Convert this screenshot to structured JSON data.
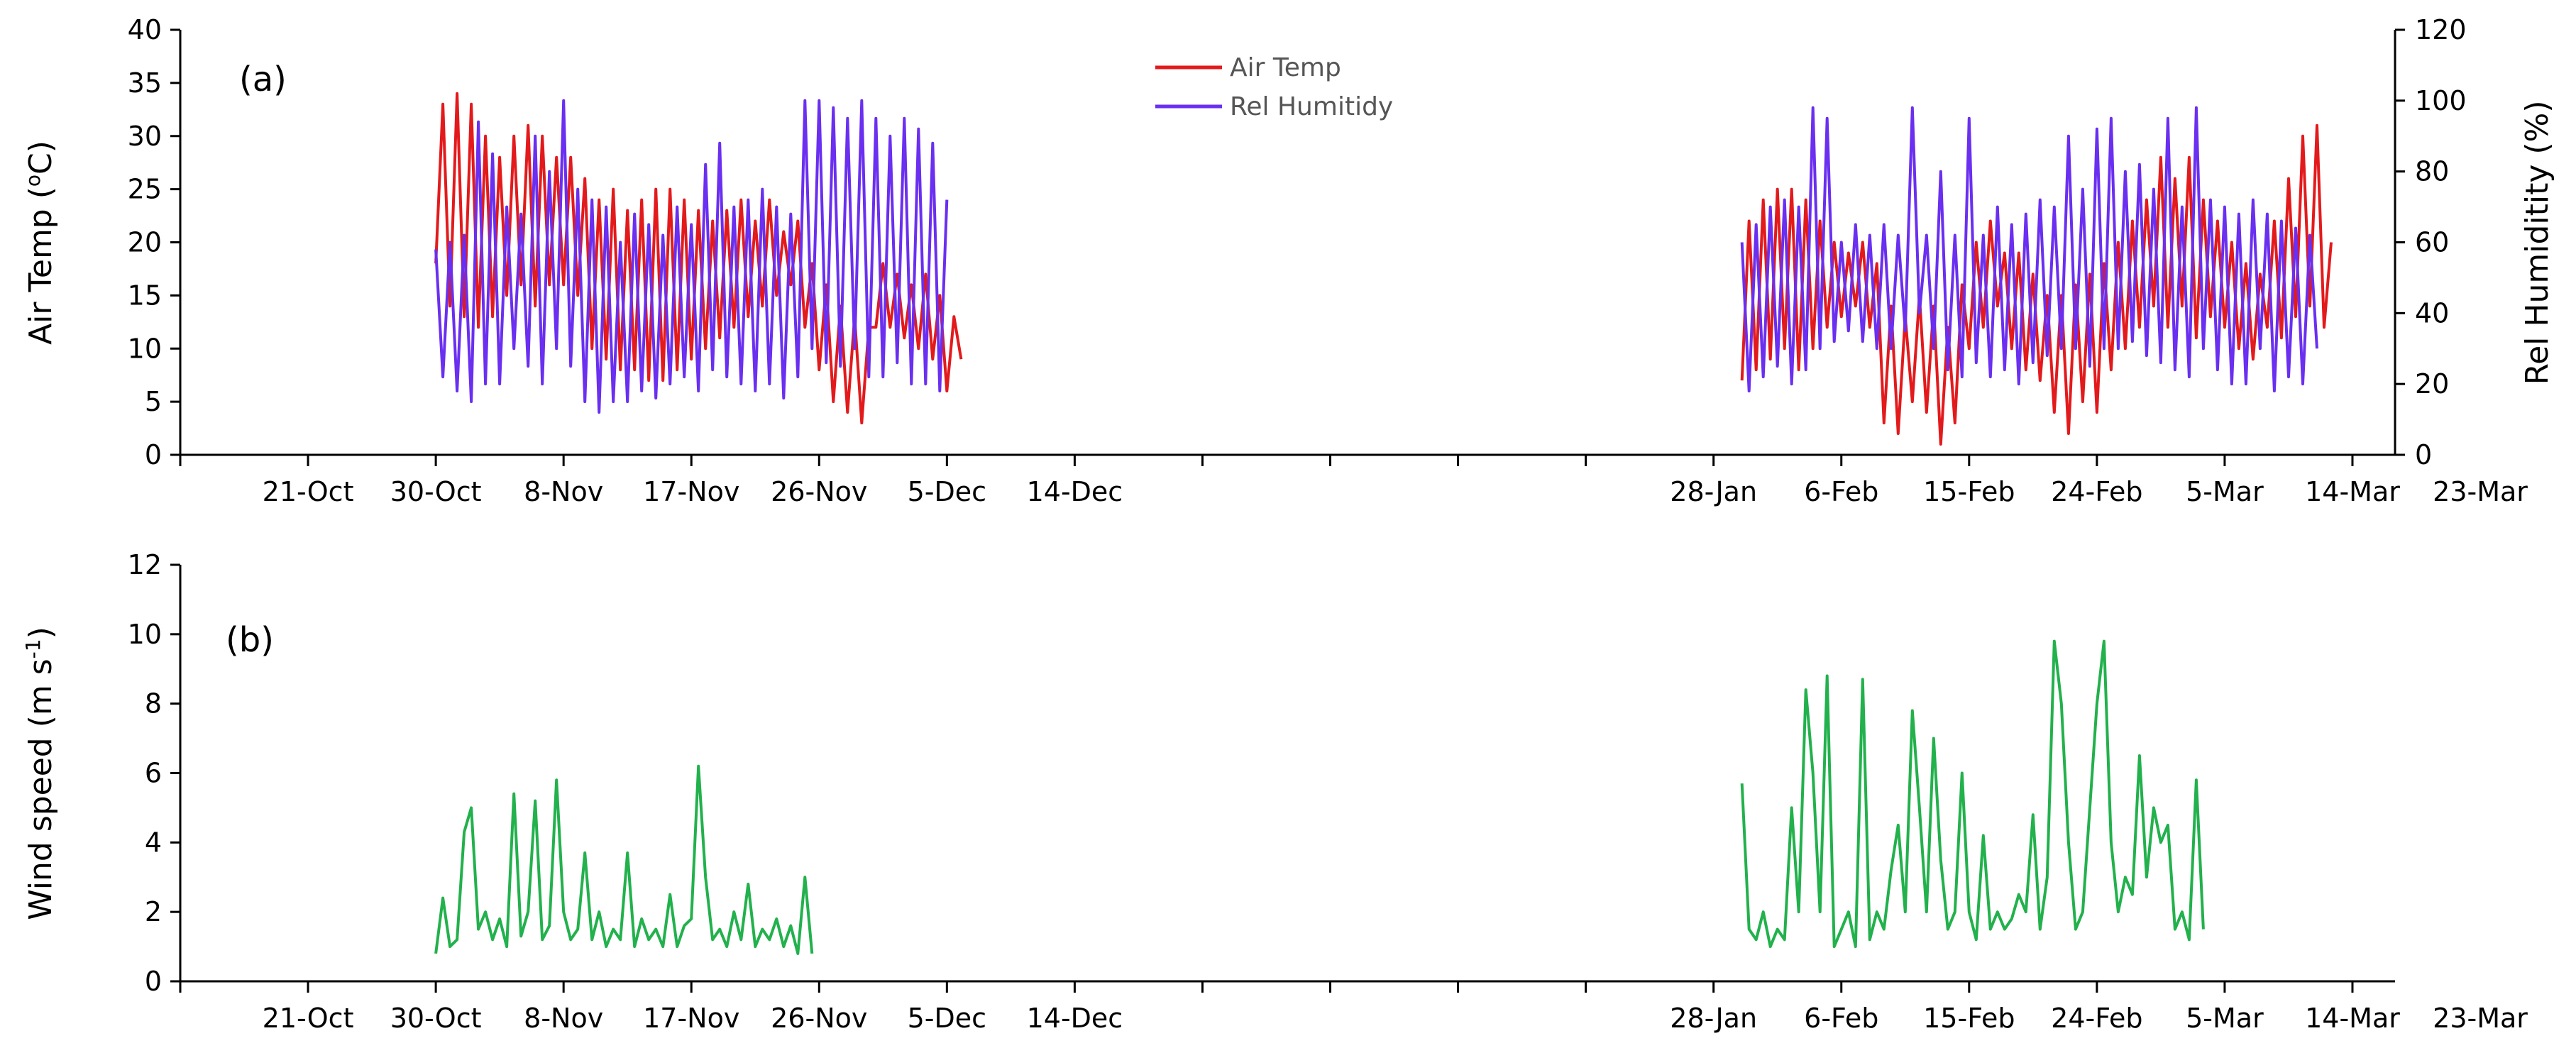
{
  "chart_data": [
    {
      "type": "line",
      "panel_label": "(a)",
      "ylabel_left": "Air Temp (",
      "ylabel_left_degree": "o",
      "ylabel_left_tail": "C)",
      "ylabel_right": "Rel Humiditity (%)",
      "ylim_left": [
        0,
        40
      ],
      "ylim_right": [
        0,
        120
      ],
      "yticks_left": [
        0,
        5,
        10,
        15,
        20,
        25,
        30,
        35,
        40
      ],
      "yticks_right": [
        0,
        20,
        40,
        60,
        80,
        100,
        120
      ],
      "x_domain_days": [
        0,
        156
      ],
      "xtick_labels": [
        "21-Oct",
        "30-Oct",
        "8-Nov",
        "17-Nov",
        "26-Nov",
        "5-Dec",
        "14-Dec",
        "28-Jan",
        "6-Feb",
        "15-Feb",
        "24-Feb",
        "5-Mar",
        "14-Mar",
        "23-Mar"
      ],
      "xtick_days": [
        9,
        18,
        27,
        36,
        45,
        54,
        63,
        108,
        117,
        126,
        135,
        144,
        153,
        162
      ],
      "legend": {
        "position": "top-center",
        "entries": [
          {
            "label": "Air Temp",
            "color": "#e31a1c"
          },
          {
            "label": "Rel Humitidy",
            "color": "#6a2ff0"
          }
        ]
      },
      "series": [
        {
          "name": "Air Temp",
          "axis": "left",
          "color": "#e31a1c",
          "segments": [
            {
              "start_day": 18,
              "points_per_day": 2,
              "values": [
                18,
                33,
                14,
                34,
                13,
                33,
                12,
                30,
                13,
                28,
                15,
                30,
                16,
                31,
                14,
                30,
                16,
                28,
                16,
                28,
                15,
                26,
                10,
                24,
                9,
                25,
                8,
                23,
                8,
                24,
                7,
                25,
                7,
                25,
                8,
                24,
                9,
                23,
                10,
                22,
                11,
                23,
                12,
                24,
                13,
                22,
                14,
                24,
                15,
                21,
                16,
                22,
                12,
                18,
                8,
                16,
                5,
                14,
                4,
                13,
                3,
                12,
                12,
                18,
                12,
                17,
                11,
                16,
                10,
                17,
                9,
                15,
                6,
                13,
                9
              ]
            },
            {
              "start_day": 110,
              "points_per_day": 2,
              "values": [
                7,
                22,
                8,
                24,
                9,
                25,
                10,
                25,
                8,
                24,
                10,
                22,
                12,
                20,
                13,
                19,
                14,
                20,
                12,
                18,
                3,
                14,
                2,
                13,
                5,
                15,
                4,
                14,
                1,
                12,
                3,
                16,
                10,
                20,
                12,
                22,
                14,
                19,
                10,
                19,
                8,
                17,
                7,
                15,
                4,
                15,
                2,
                16,
                5,
                17,
                4,
                18,
                8,
                20,
                10,
                22,
                12,
                24,
                14,
                28,
                12,
                26,
                14,
                28,
                11,
                24,
                13,
                22,
                12,
                20,
                10,
                18,
                9,
                17,
                12,
                22,
                11,
                26,
                13,
                30,
                14,
                31,
                12,
                20
              ]
            }
          ]
        },
        {
          "name": "Rel Humitidy",
          "axis": "right",
          "color": "#6a2ff0",
          "segments": [
            {
              "start_day": 18,
              "points_per_day": 2,
              "values": [
                58,
                22,
                60,
                18,
                62,
                15,
                94,
                20,
                85,
                20,
                70,
                30,
                68,
                25,
                90,
                20,
                80,
                30,
                100,
                25,
                75,
                15,
                72,
                12,
                70,
                15,
                60,
                15,
                68,
                18,
                65,
                16,
                62,
                20,
                70,
                22,
                65,
                18,
                82,
                24,
                88,
                22,
                70,
                20,
                72,
                18,
                75,
                20,
                70,
                16,
                68,
                22,
                100,
                30,
                100,
                26,
                98,
                25,
                95,
                30,
                100,
                22,
                95,
                22,
                90,
                26,
                95,
                20,
                92,
                20,
                88,
                18,
                72
              ]
            },
            {
              "start_day": 110,
              "points_per_day": 2,
              "values": [
                60,
                18,
                65,
                22,
                70,
                25,
                72,
                20,
                70,
                24,
                98,
                30,
                95,
                32,
                60,
                35,
                65,
                32,
                62,
                30,
                65,
                30,
                62,
                35,
                98,
                40,
                62,
                30,
                80,
                24,
                62,
                22,
                95,
                26,
                62,
                22,
                70,
                24,
                65,
                20,
                68,
                26,
                72,
                28,
                70,
                30,
                90,
                30,
                75,
                25,
                92,
                30,
                95,
                30,
                80,
                32,
                82,
                28,
                75,
                26,
                95,
                24,
                70,
                22,
                98,
                30,
                72,
                24,
                70,
                20,
                68,
                20,
                72,
                30,
                68,
                18,
                66,
                22,
                64,
                20,
                62,
                30
              ]
            }
          ]
        }
      ]
    },
    {
      "type": "line",
      "panel_label": "(b)",
      "ylabel_base": "Wind speed (m s",
      "ylabel_sup": "-1",
      "ylabel_tail": ")",
      "ylim": [
        0,
        12
      ],
      "yticks": [
        0,
        2,
        4,
        6,
        8,
        10,
        12
      ],
      "x_domain_days": [
        0,
        156
      ],
      "xtick_labels": [
        "21-Oct",
        "30-Oct",
        "8-Nov",
        "17-Nov",
        "26-Nov",
        "5-Dec",
        "14-Dec",
        "28-Jan",
        "6-Feb",
        "15-Feb",
        "24-Feb",
        "5-Mar",
        "14-Mar",
        "23-Mar"
      ],
      "xtick_days": [
        9,
        18,
        27,
        36,
        45,
        54,
        63,
        108,
        117,
        126,
        135,
        144,
        153,
        162
      ],
      "series": [
        {
          "name": "Wind speed",
          "color": "#22b14c",
          "segments": [
            {
              "start_day": 18,
              "points_per_day": 2,
              "values": [
                0.8,
                2.4,
                1.0,
                1.2,
                4.3,
                5.0,
                1.5,
                2.0,
                1.2,
                1.8,
                1.0,
                5.4,
                1.3,
                2.0,
                5.2,
                1.2,
                1.6,
                5.8,
                2.0,
                1.2,
                1.5,
                3.7,
                1.2,
                2.0,
                1.0,
                1.5,
                1.2,
                3.7,
                1.0,
                1.8,
                1.2,
                1.5,
                1.0,
                2.5,
                1.0,
                1.6,
                1.8,
                6.2,
                3.0,
                1.2,
                1.5,
                1.0,
                2.0,
                1.2,
                2.8,
                1.0,
                1.5,
                1.2,
                1.8,
                1.0,
                1.6,
                0.8,
                3.0,
                0.8
              ]
            },
            {
              "start_day": 110,
              "points_per_day": 2,
              "values": [
                5.7,
                1.5,
                1.2,
                2.0,
                1.0,
                1.5,
                1.2,
                5.0,
                2.0,
                8.4,
                6.0,
                2.0,
                8.8,
                1.0,
                1.5,
                2.0,
                1.0,
                8.7,
                1.2,
                2.0,
                1.5,
                3.2,
                4.5,
                2.0,
                7.8,
                5.0,
                2.0,
                7.0,
                3.5,
                1.5,
                2.0,
                6.0,
                2.0,
                1.2,
                4.2,
                1.5,
                2.0,
                1.5,
                1.8,
                2.5,
                2.0,
                4.8,
                1.5,
                3.0,
                9.8,
                8.0,
                4.0,
                1.5,
                2.0,
                5.0,
                8.0,
                9.8,
                4.0,
                2.0,
                3.0,
                2.5,
                6.5,
                3.0,
                5.0,
                4.0,
                4.5,
                1.5,
                2.0,
                1.2,
                5.8,
                1.5
              ]
            }
          ]
        }
      ]
    }
  ]
}
